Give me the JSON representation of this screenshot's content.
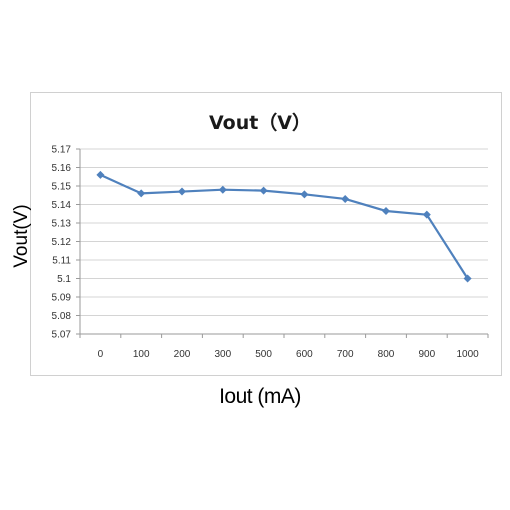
{
  "chart_data": {
    "type": "line",
    "title": "Vout（V）",
    "ylabel": "Vout(V)",
    "xlabel": "Iout (mA)",
    "categories": [
      "0",
      "100",
      "200",
      "300",
      "500",
      "600",
      "700",
      "800",
      "900",
      "1000"
    ],
    "series": [
      {
        "values": [
          5.156,
          5.146,
          5.147,
          5.148,
          5.1475,
          5.1455,
          5.143,
          5.1365,
          5.1345,
          5.1
        ]
      }
    ],
    "yticks": [
      "5.07",
      "5.08",
      "5.09",
      "5.1",
      "5.11",
      "5.12",
      "5.13",
      "5.14",
      "5.15",
      "5.16",
      "5.17"
    ],
    "ylim": [
      5.07,
      5.17
    ],
    "grid": true,
    "line_color": "#4f81bd"
  }
}
